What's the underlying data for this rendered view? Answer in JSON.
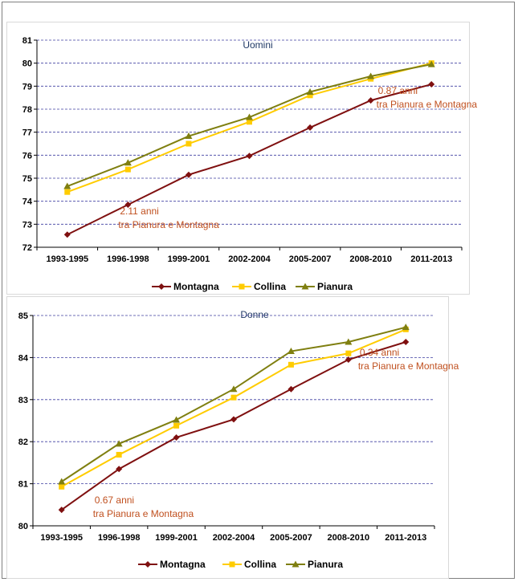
{
  "colors": {
    "montagna": "#7f1010",
    "collina": "#ffcc00",
    "pianura": "#7f7f10",
    "grid": "#3f3fa0",
    "annotation": "#c0501f",
    "title": "#1f3864"
  },
  "chart_data": [
    {
      "type": "line",
      "title": "Uomini",
      "categories": [
        "1993-1995",
        "1996-1998",
        "1999-2001",
        "2002-2004",
        "2005-2007",
        "2008-2010",
        "2011-2013"
      ],
      "ylim": [
        72,
        81
      ],
      "yticks": [
        72,
        73,
        74,
        75,
        76,
        77,
        78,
        79,
        80,
        81
      ],
      "grid": true,
      "legend_position": "bottom",
      "series": [
        {
          "name": "Montagna",
          "marker": "diamond",
          "values": [
            72.55,
            73.85,
            75.15,
            75.97,
            77.2,
            78.38,
            79.08
          ]
        },
        {
          "name": "Collina",
          "marker": "square",
          "values": [
            74.4,
            75.38,
            76.5,
            77.45,
            78.6,
            79.32,
            80.0
          ]
        },
        {
          "name": "Pianura",
          "marker": "triangle",
          "values": [
            74.65,
            75.67,
            76.83,
            77.65,
            78.75,
            79.43,
            79.95
          ]
        }
      ],
      "annotations": [
        {
          "lines": [
            "2.11 anni",
            "tra Pianura e Montagna"
          ],
          "category": "1996-1998"
        },
        {
          "lines": [
            "0.87 anni",
            "tra Pianura e Montagna"
          ],
          "category": "2008-2010"
        }
      ]
    },
    {
      "type": "line",
      "title": "Donne",
      "categories": [
        "1993-1995",
        "1996-1998",
        "1999-2001",
        "2002-2004",
        "2005-2007",
        "2008-2010",
        "2011-2013"
      ],
      "ylim": [
        80,
        85
      ],
      "yticks": [
        80,
        81,
        82,
        83,
        84,
        85
      ],
      "grid": true,
      "legend_position": "bottom",
      "series": [
        {
          "name": "Montagna",
          "marker": "diamond",
          "values": [
            80.38,
            81.35,
            82.1,
            82.53,
            83.25,
            83.95,
            84.37
          ]
        },
        {
          "name": "Collina",
          "marker": "square",
          "values": [
            80.93,
            81.69,
            82.38,
            83.05,
            83.83,
            84.1,
            84.67
          ]
        },
        {
          "name": "Pianura",
          "marker": "triangle",
          "values": [
            81.05,
            81.95,
            82.52,
            83.25,
            84.15,
            84.37,
            84.72
          ]
        }
      ],
      "annotations": [
        {
          "lines": [
            "0.67 anni",
            "tra Pianura e Montagna"
          ],
          "category": "1993-1995"
        },
        {
          "lines": [
            "0.34 anni",
            "tra Pianura e Montagna"
          ],
          "category": "2008-2010"
        }
      ]
    }
  ]
}
